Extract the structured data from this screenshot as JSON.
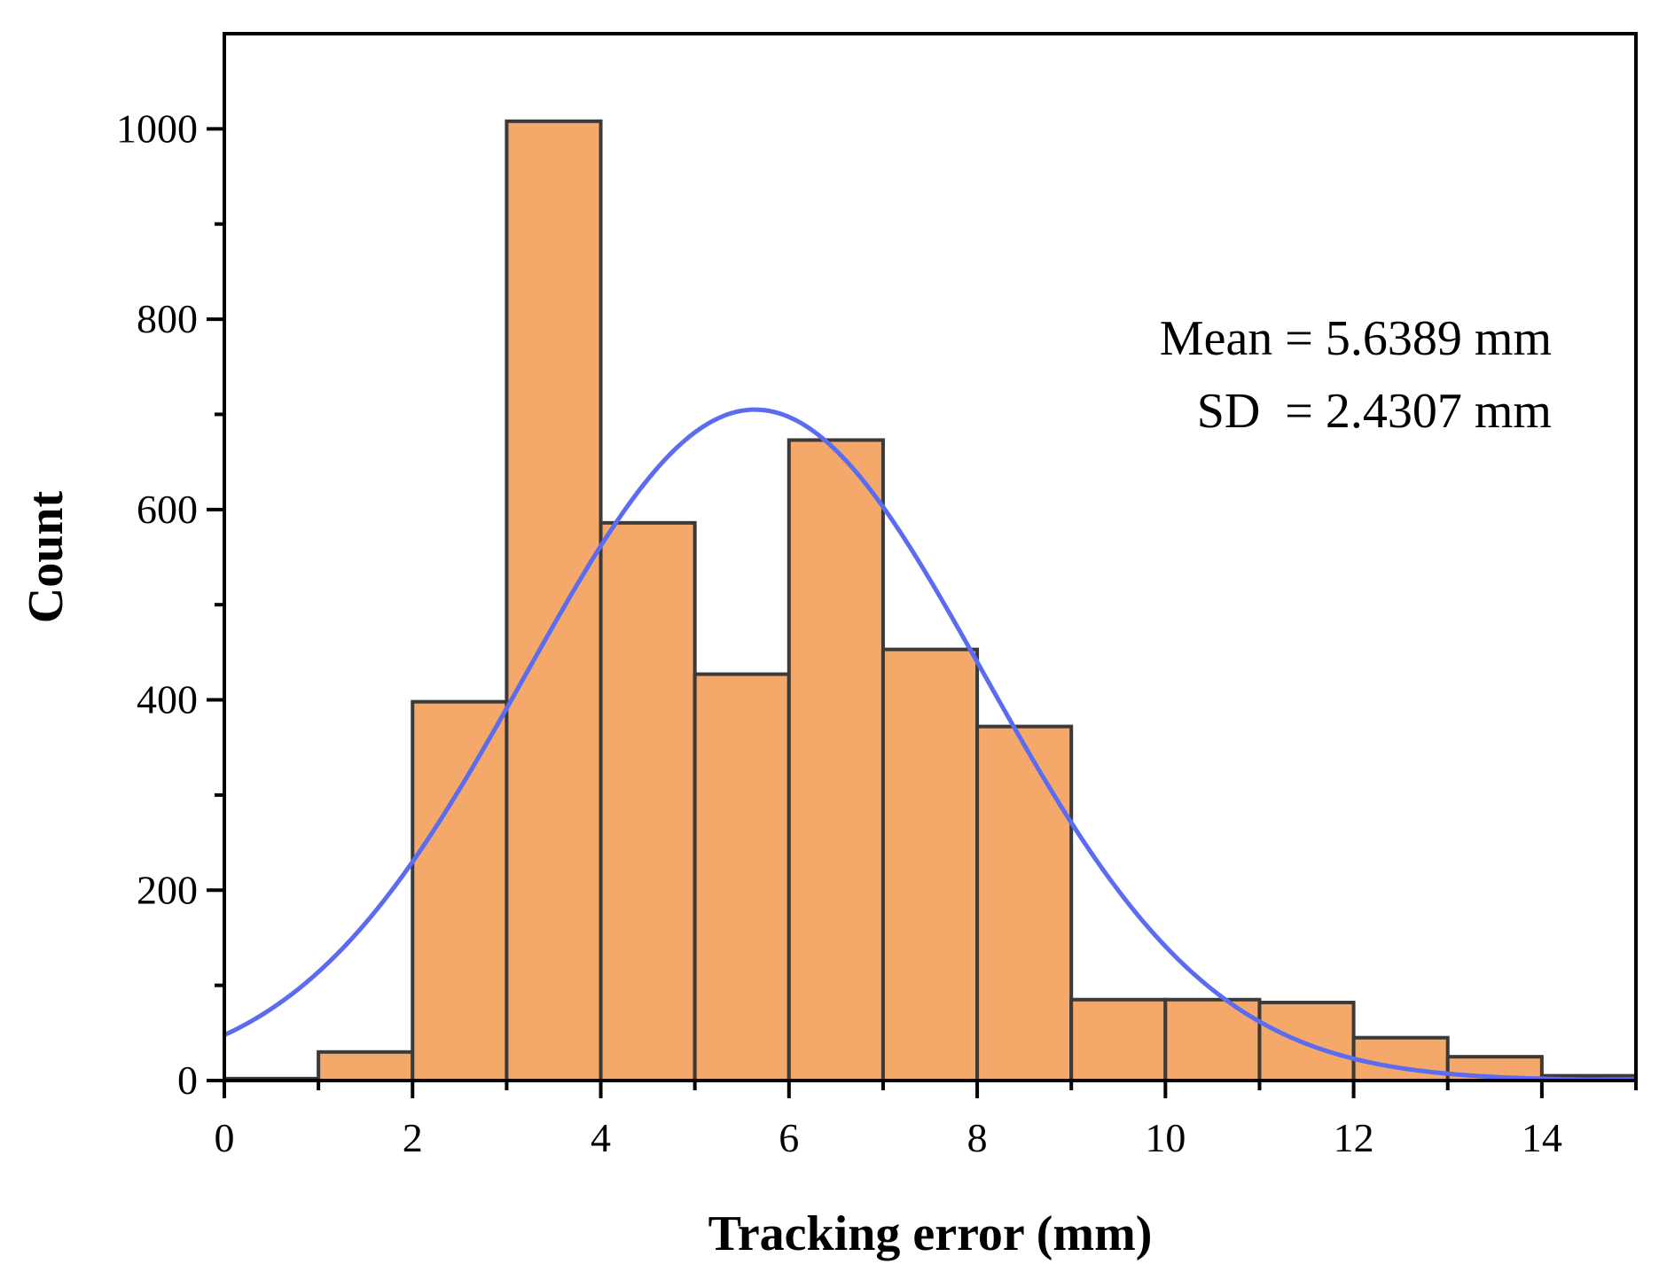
{
  "chart_data": {
    "type": "bar",
    "title": "",
    "xlabel": "Tracking error (mm)",
    "ylabel": "Count",
    "xlim": [
      0,
      15
    ],
    "ylim": [
      0,
      1100
    ],
    "x_ticks": [
      0,
      2,
      4,
      6,
      8,
      10,
      12,
      14
    ],
    "y_ticks": [
      0,
      200,
      400,
      600,
      800,
      1000
    ],
    "bins": [
      {
        "start": 0,
        "end": 1,
        "count": 2
      },
      {
        "start": 1,
        "end": 2,
        "count": 30
      },
      {
        "start": 2,
        "end": 3,
        "count": 398
      },
      {
        "start": 3,
        "end": 4,
        "count": 1008
      },
      {
        "start": 4,
        "end": 5,
        "count": 586
      },
      {
        "start": 5,
        "end": 6,
        "count": 427
      },
      {
        "start": 6,
        "end": 7,
        "count": 673
      },
      {
        "start": 7,
        "end": 8,
        "count": 453
      },
      {
        "start": 8,
        "end": 9,
        "count": 372
      },
      {
        "start": 9,
        "end": 10,
        "count": 85
      },
      {
        "start": 10,
        "end": 11,
        "count": 85
      },
      {
        "start": 11,
        "end": 12,
        "count": 82
      },
      {
        "start": 12,
        "end": 13,
        "count": 45
      },
      {
        "start": 13,
        "end": 14,
        "count": 25
      },
      {
        "start": 14,
        "end": 15,
        "count": 5
      }
    ],
    "normal_fit": {
      "mean": 5.6389,
      "sd": 2.4307,
      "peak": 705,
      "color": "#5B6CF0"
    },
    "bar_color": "#F4A96A",
    "bar_edge_color": "#3a3a3a",
    "annotations": [
      {
        "text": "Mean = 5.6389 mm"
      },
      {
        "text": "SD  = 2.4307 mm"
      }
    ]
  }
}
